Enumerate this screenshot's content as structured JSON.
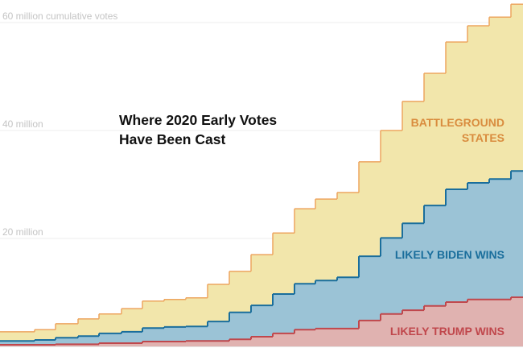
{
  "chart_data": {
    "type": "area",
    "stacked": true,
    "step": true,
    "title": "Where 2020 Early Votes Have Been Cast",
    "title_lines": [
      "Where 2020 Early Votes",
      "Have Been Cast"
    ],
    "xlabel": "",
    "ylabel": "cumulative votes",
    "ylim": [
      0,
      65
    ],
    "y_unit": "million",
    "grid": true,
    "y_ticks": [
      {
        "value": 20,
        "label": "20 million"
      },
      {
        "value": 40,
        "label": "40 million"
      },
      {
        "value": 60,
        "label": "60 million cumulative votes"
      }
    ],
    "x": [
      1,
      2,
      3,
      4,
      5,
      6,
      7,
      8,
      9,
      10,
      11,
      12,
      13,
      14,
      15,
      16,
      17,
      18,
      19,
      20,
      21,
      22,
      23,
      24
    ],
    "cumulative_totals": {
      "trump": [
        0.3,
        0.3,
        0.4,
        0.4,
        0.6,
        0.6,
        0.9,
        0.9,
        1.0,
        1.0,
        1.3,
        1.8,
        2.4,
        3.1,
        3.3,
        3.3,
        4.8,
        6.0,
        6.7,
        7.5,
        8.2,
        8.7,
        8.7,
        9.1
      ],
      "trump_plus_biden": [
        1.0,
        1.2,
        1.6,
        1.9,
        2.4,
        2.7,
        3.4,
        3.6,
        3.7,
        4.6,
        6.3,
        7.6,
        9.7,
        11.6,
        12.2,
        12.8,
        16.7,
        20.1,
        22.8,
        26.1,
        29.1,
        30.3,
        31.0,
        32.5
      ],
      "all": [
        2.7,
        3.1,
        4.2,
        5.1,
        6.0,
        7.0,
        8.4,
        8.7,
        9.0,
        11.5,
        13.9,
        17.0,
        21.0,
        25.5,
        27.3,
        28.5,
        34.2,
        40.0,
        45.4,
        50.6,
        56.4,
        59.4,
        61.0,
        63.4
      ]
    },
    "series": [
      {
        "name": "LIKELY TRUMP WINS",
        "fill": "#e0b2b0",
        "stroke": "#c0474c",
        "label_color": "#c0474c",
        "values": [
          0.3,
          0.3,
          0.4,
          0.4,
          0.6,
          0.6,
          0.9,
          0.9,
          1.0,
          1.0,
          1.3,
          1.8,
          2.4,
          3.1,
          3.3,
          3.3,
          4.8,
          6.0,
          6.7,
          7.5,
          8.2,
          8.7,
          8.7,
          9.1
        ]
      },
      {
        "name": "LIKELY BIDEN WINS",
        "fill": "#9bc3d6",
        "stroke": "#1a6e9c",
        "label_color": "#1a6e9c",
        "values": [
          0.7,
          0.9,
          1.2,
          1.5,
          1.8,
          2.1,
          2.5,
          2.7,
          2.7,
          3.6,
          5.0,
          5.8,
          7.3,
          8.5,
          8.9,
          9.5,
          11.9,
          14.1,
          16.1,
          18.6,
          20.9,
          21.6,
          22.3,
          23.4
        ]
      },
      {
        "name": "BATTLEGROUND STATES",
        "label_lines": [
          "BATTLEGROUND",
          "STATES"
        ],
        "fill": "#f2e6ab",
        "stroke": "#eda55f",
        "label_color": "#d98c3e",
        "values": [
          1.7,
          1.9,
          2.6,
          3.2,
          3.6,
          4.3,
          5.0,
          5.1,
          5.3,
          6.9,
          7.6,
          9.4,
          11.3,
          13.9,
          15.1,
          15.7,
          17.5,
          19.9,
          22.6,
          24.5,
          27.3,
          29.1,
          30.0,
          30.9
        ]
      }
    ],
    "legend": "inline-right"
  }
}
